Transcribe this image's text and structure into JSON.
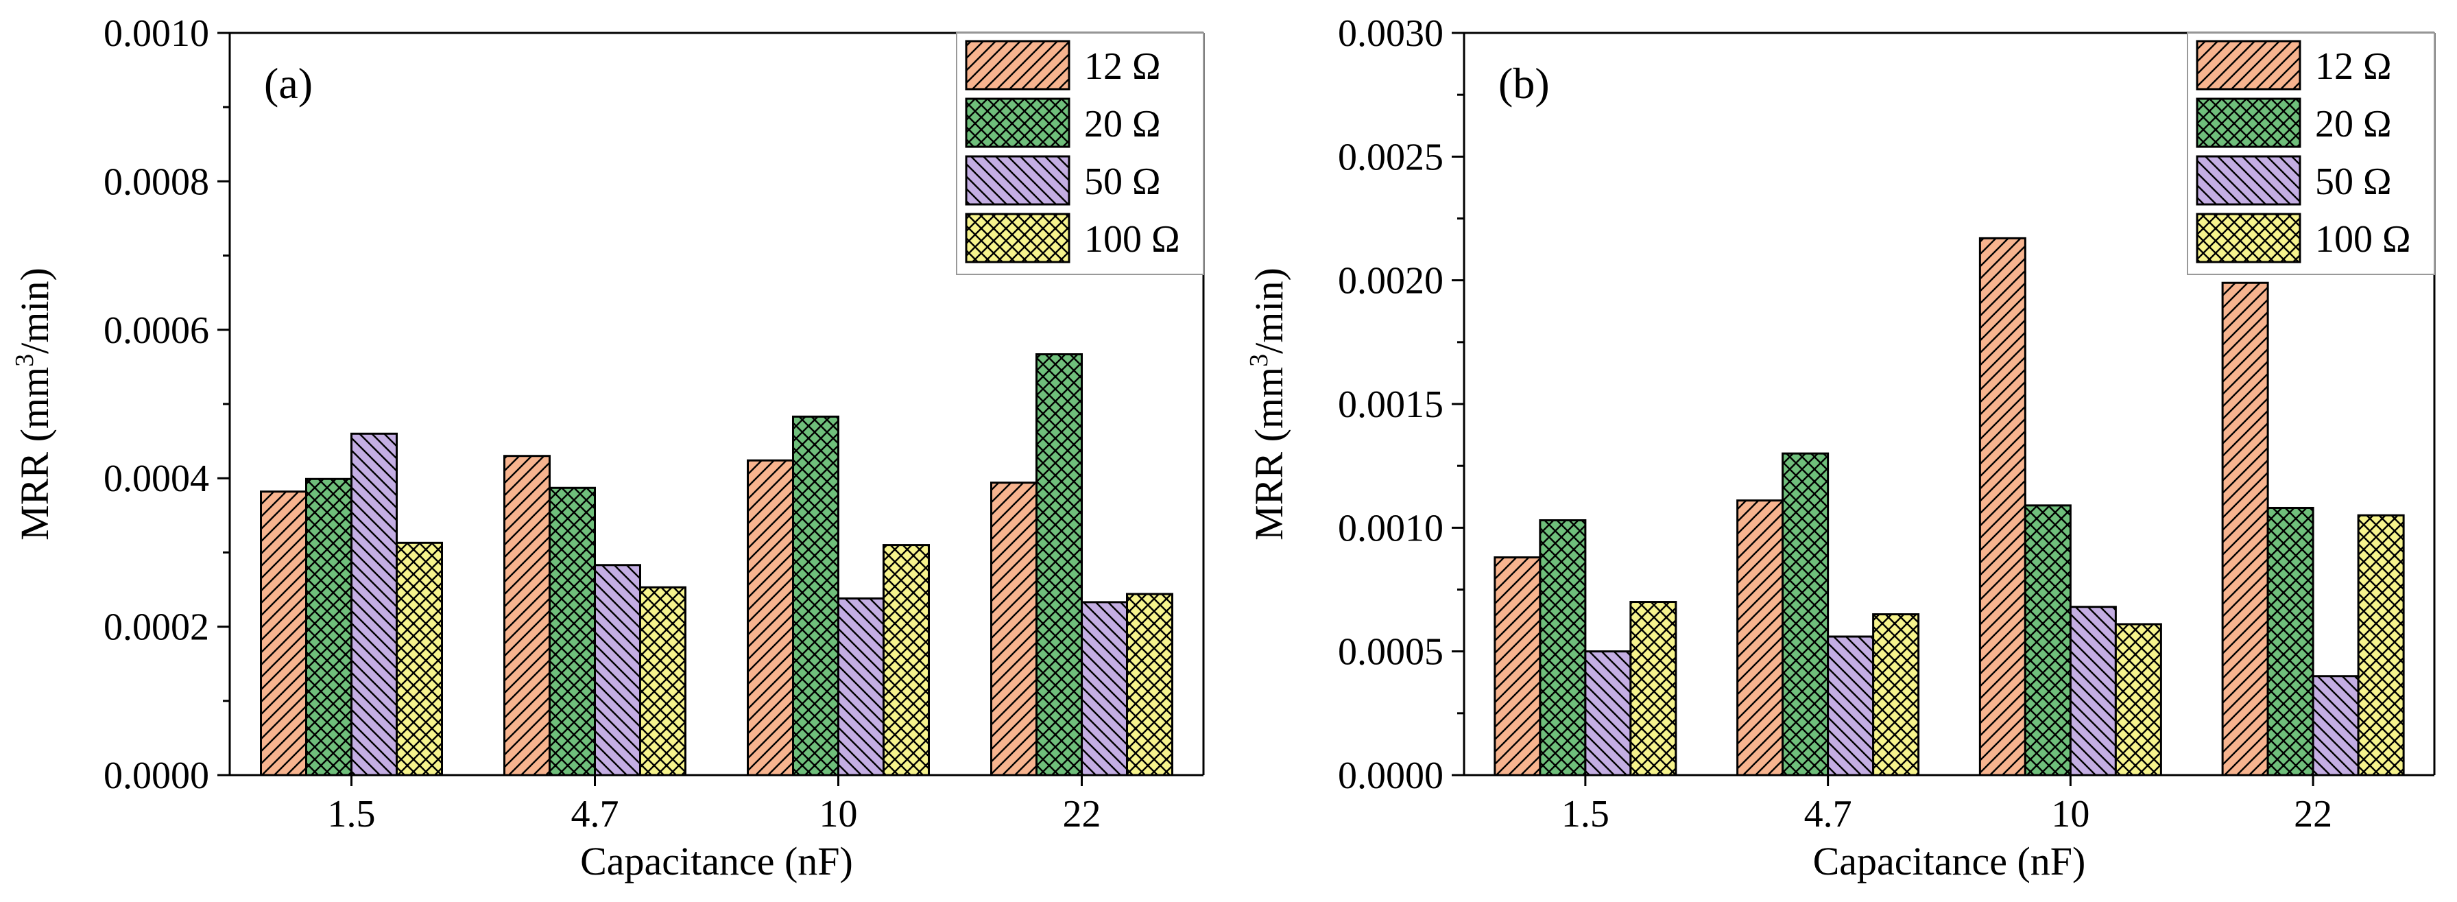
{
  "colors": {
    "s12": "#f7b48f",
    "s20": "#6fbf7b",
    "s50": "#c4aee3",
    "s100": "#f6f38d",
    "axis": "#000000"
  },
  "chart_data": [
    {
      "type": "bar",
      "panel_label": "(a)",
      "xlabel": "Capacitance (nF)",
      "ylabel_main": "MRR (mm",
      "ylabel_sup": "3",
      "ylabel_tail": "/min)",
      "ylim": [
        0,
        0.001
      ],
      "yticks": [
        0,
        0.0002,
        0.0004,
        0.0006,
        0.0008,
        0.001
      ],
      "ytick_labels": [
        "0.0000",
        "0.0002",
        "0.0004",
        "0.0006",
        "0.0008",
        "0.0010"
      ],
      "categories": [
        "1.5",
        "4.7",
        "10",
        "22"
      ],
      "legend_position": "top-right",
      "series": [
        {
          "name": "12 Ω",
          "key": "s12",
          "pattern": "hatch",
          "values": [
            0.000382,
            0.00043,
            0.000424,
            0.000394
          ]
        },
        {
          "name": "20 Ω",
          "key": "s20",
          "pattern": "cross",
          "values": [
            0.000399,
            0.000387,
            0.000483,
            0.000567
          ]
        },
        {
          "name": "50 Ω",
          "key": "s50",
          "pattern": "back",
          "values": [
            0.00046,
            0.000283,
            0.000238,
            0.000233
          ]
        },
        {
          "name": "100 Ω",
          "key": "s100",
          "pattern": "cross",
          "values": [
            0.000313,
            0.000253,
            0.00031,
            0.000244
          ]
        }
      ]
    },
    {
      "type": "bar",
      "panel_label": "(b)",
      "xlabel": "Capacitance (nF)",
      "ylabel_main": "MRR (mm",
      "ylabel_sup": "3",
      "ylabel_tail": "/min)",
      "ylim": [
        0,
        0.003
      ],
      "yticks": [
        0,
        0.0005,
        0.001,
        0.0015,
        0.002,
        0.0025,
        0.003
      ],
      "ytick_labels": [
        "0.0000",
        "0.0005",
        "0.0010",
        "0.0015",
        "0.0020",
        "0.0025",
        "0.0030"
      ],
      "categories": [
        "1.5",
        "4.7",
        "10",
        "22"
      ],
      "legend_position": "top-right",
      "series": [
        {
          "name": "12 Ω",
          "key": "s12",
          "pattern": "hatch",
          "values": [
            0.00088,
            0.00111,
            0.00217,
            0.00199
          ]
        },
        {
          "name": "20 Ω",
          "key": "s20",
          "pattern": "cross",
          "values": [
            0.00103,
            0.0013,
            0.00109,
            0.00108
          ]
        },
        {
          "name": "50 Ω",
          "key": "s50",
          "pattern": "back",
          "values": [
            0.0005,
            0.00056,
            0.00068,
            0.0004
          ]
        },
        {
          "name": "100 Ω",
          "key": "s100",
          "pattern": "cross",
          "values": [
            0.0007,
            0.00065,
            0.00061,
            0.00105
          ]
        }
      ]
    }
  ]
}
